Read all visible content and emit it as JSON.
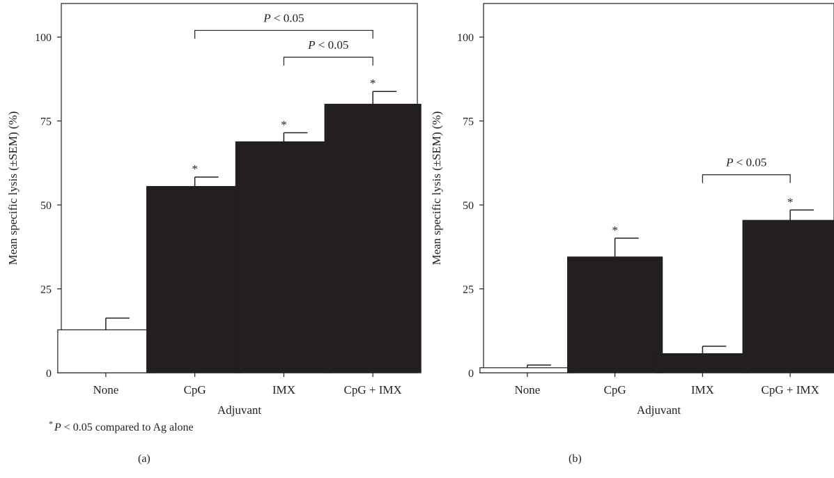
{
  "chart_data": [
    {
      "type": "bar",
      "panel_label": "(a)",
      "xlabel": "Adjuvant",
      "ylabel": "Mean specific lysis (±SEM) (%)",
      "ylim": [
        0,
        110
      ],
      "yticks": [
        0,
        25,
        50,
        75,
        100
      ],
      "categories": [
        "None",
        "CpG",
        "IMX",
        "CpG + IMX"
      ],
      "values": [
        12.8,
        55.5,
        68.8,
        80.0
      ],
      "errors": [
        3.5,
        2.8,
        2.7,
        3.8
      ],
      "bar_colors": [
        "#ffffff",
        "#231f20",
        "#231f20",
        "#231f20"
      ],
      "significance_marks": [
        {
          "category": "CpG",
          "text": "*"
        },
        {
          "category": "IMX",
          "text": "*"
        },
        {
          "category": "CpG + IMX",
          "text": "*"
        }
      ],
      "comparisons": [
        {
          "from": "CpG",
          "to": "CpG + IMX",
          "y": 102,
          "label": "P < 0.05"
        },
        {
          "from": "IMX",
          "to": "CpG + IMX",
          "y": 94,
          "label": "P < 0.05"
        }
      ],
      "grid": false
    },
    {
      "type": "bar",
      "panel_label": "(b)",
      "xlabel": "Adjuvant",
      "ylabel": "Mean specific lysis (±SEM) (%)",
      "ylim": [
        0,
        110
      ],
      "yticks": [
        0,
        25,
        50,
        75,
        100
      ],
      "categories": [
        "None",
        "CpG",
        "IMX",
        "CpG + IMX"
      ],
      "values": [
        1.5,
        34.5,
        5.7,
        45.4
      ],
      "errors": [
        0.8,
        5.6,
        2.2,
        3.1
      ],
      "bar_colors": [
        "#ffffff",
        "#231f20",
        "#231f20",
        "#231f20"
      ],
      "significance_marks": [
        {
          "category": "CpG",
          "text": "*"
        },
        {
          "category": "CpG + IMX",
          "text": "*"
        }
      ],
      "comparisons": [
        {
          "from": "IMX",
          "to": "CpG + IMX",
          "y": 59,
          "label": "P < 0.05"
        }
      ],
      "grid": false
    }
  ],
  "footnote": {
    "star": "*",
    "p_symbol": "P",
    "text": " < 0.05 compared to Ag alone"
  },
  "colors": {
    "ink": "#231f20",
    "background": "#ffffff"
  }
}
